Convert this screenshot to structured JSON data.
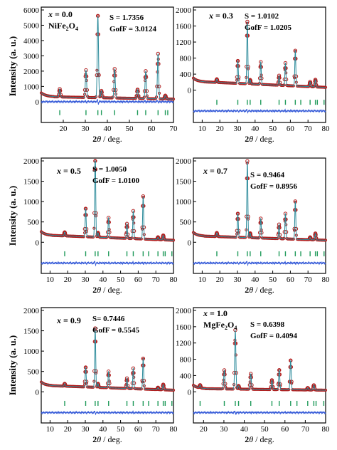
{
  "ylabel": "Intensity (a. u.)",
  "xlabel_prefix": "2",
  "xlabel_theta": "θ",
  "xlabel_suffix": " / deg.",
  "colors": {
    "observed": "#b01c1c",
    "calculated": "#2a8a9a",
    "tick": "#1f9a5a",
    "difference": "#3b5fd9",
    "axis": "#000000"
  },
  "chart_data": [
    {
      "type": "line",
      "panel": "x = 0.0",
      "composition": "x = 0.0",
      "formula": "NiFe2O4",
      "S": "S = 1.7356",
      "GofF": "GofF = 3.0124",
      "xlim": [
        10,
        70
      ],
      "ylim": [
        0,
        6000
      ],
      "xticks": [
        20,
        30,
        40,
        50,
        60,
        70
      ],
      "yticks": [
        0,
        1000,
        2000,
        3000,
        4000,
        5000,
        6000
      ],
      "background": [
        {
          "x": 12,
          "y": 330
        },
        {
          "x": 70,
          "y": 170
        }
      ],
      "peaks": [
        {
          "x": 18.4,
          "y": 520
        },
        {
          "x": 30.3,
          "y": 1780
        },
        {
          "x": 35.7,
          "y": 5350
        },
        {
          "x": 37.3,
          "y": 450
        },
        {
          "x": 43.3,
          "y": 1900
        },
        {
          "x": 53.7,
          "y": 580
        },
        {
          "x": 57.4,
          "y": 1800
        },
        {
          "x": 63.0,
          "y": 2950
        },
        {
          "x": 66.3,
          "y": 220
        }
      ],
      "bragg_positions": [
        18.4,
        30.3,
        35.7,
        37.3,
        43.3,
        53.7,
        57.4,
        63.0,
        66.3,
        67.4
      ]
    },
    {
      "type": "line",
      "panel": "x = 0.3",
      "composition": "x = 0.3",
      "formula": "",
      "S": "S = 1.0102",
      "GofF": "GofF = 1.0205",
      "xlim": [
        5,
        80
      ],
      "ylim": [
        0,
        2000
      ],
      "xticks": [
        10,
        20,
        30,
        40,
        50,
        60,
        70,
        80
      ],
      "yticks": [
        0,
        400,
        800,
        1200,
        1600,
        2000
      ],
      "background": [
        {
          "x": 5,
          "y": 220
        },
        {
          "x": 80,
          "y": 70
        }
      ],
      "peaks": [
        {
          "x": 18.3,
          "y": 80
        },
        {
          "x": 30.2,
          "y": 560
        },
        {
          "x": 35.6,
          "y": 1550
        },
        {
          "x": 37.2,
          "y": 100
        },
        {
          "x": 43.2,
          "y": 560
        },
        {
          "x": 53.6,
          "y": 240
        },
        {
          "x": 57.2,
          "y": 560
        },
        {
          "x": 62.8,
          "y": 880
        },
        {
          "x": 71.2,
          "y": 120
        },
        {
          "x": 74.2,
          "y": 180
        }
      ],
      "bragg_positions": [
        18.3,
        30.2,
        35.6,
        37.2,
        43.2,
        53.6,
        57.2,
        62.8,
        65.9,
        71.2,
        74.2,
        75.3,
        79.1
      ]
    },
    {
      "type": "line",
      "panel": "x = 0.5",
      "composition": "x = 0.5",
      "formula": "",
      "S": "S = 1.0050",
      "GofF": "GofF = 1.0100",
      "xlim": [
        5,
        80
      ],
      "ylim": [
        0,
        2000
      ],
      "xticks": [
        10,
        20,
        30,
        40,
        50,
        60,
        70,
        80
      ],
      "yticks": [
        0,
        500,
        1000,
        1500,
        2000
      ],
      "background": [
        {
          "x": 5,
          "y": 180
        },
        {
          "x": 80,
          "y": 50
        }
      ],
      "peaks": [
        {
          "x": 18.3,
          "y": 90
        },
        {
          "x": 30.2,
          "y": 690
        },
        {
          "x": 35.6,
          "y": 2150
        },
        {
          "x": 37.2,
          "y": 110
        },
        {
          "x": 43.2,
          "y": 490
        },
        {
          "x": 53.6,
          "y": 360
        },
        {
          "x": 57.2,
          "y": 680
        },
        {
          "x": 62.8,
          "y": 1050
        },
        {
          "x": 71.2,
          "y": 60
        },
        {
          "x": 74.2,
          "y": 110
        }
      ],
      "bragg_positions": [
        18.3,
        30.2,
        35.6,
        37.2,
        43.2,
        53.6,
        57.2,
        62.8,
        65.9,
        71.2,
        74.2,
        75.3,
        79.1
      ]
    },
    {
      "type": "line",
      "panel": "x = 0.7",
      "composition": "x = 0.7",
      "formula": "",
      "S": "S = 0.9464",
      "GofF": "GofF = 0.8956",
      "xlim": [
        5,
        80
      ],
      "ylim": [
        0,
        2000
      ],
      "xticks": [
        10,
        20,
        30,
        40,
        50,
        60,
        70,
        80
      ],
      "yticks": [
        0,
        500,
        1000,
        1500,
        2000
      ],
      "background": [
        {
          "x": 5,
          "y": 160
        },
        {
          "x": 80,
          "y": 50
        }
      ],
      "peaks": [
        {
          "x": 18.3,
          "y": 90
        },
        {
          "x": 30.2,
          "y": 580
        },
        {
          "x": 35.6,
          "y": 1880
        },
        {
          "x": 37.2,
          "y": 110
        },
        {
          "x": 43.2,
          "y": 480
        },
        {
          "x": 53.6,
          "y": 350
        },
        {
          "x": 57.2,
          "y": 620
        },
        {
          "x": 62.8,
          "y": 930
        },
        {
          "x": 71.2,
          "y": 60
        },
        {
          "x": 74.2,
          "y": 160
        }
      ],
      "bragg_positions": [
        18.3,
        30.2,
        35.6,
        37.2,
        43.2,
        53.6,
        57.2,
        62.8,
        65.9,
        71.2,
        74.2,
        75.3,
        79.1
      ]
    },
    {
      "type": "line",
      "panel": "x = 0.9",
      "composition": "x = 0.9",
      "formula": "",
      "S": "S= 0.7446",
      "GofF": "GofF = 0.5545",
      "xlim": [
        5,
        80
      ],
      "ylim": [
        0,
        2000
      ],
      "xticks": [
        10,
        20,
        30,
        40,
        50,
        60,
        70,
        80
      ],
      "yticks": [
        0,
        500,
        1000,
        1500,
        2000
      ],
      "background": [
        {
          "x": 5,
          "y": 160
        },
        {
          "x": 80,
          "y": 40
        }
      ],
      "peaks": [
        {
          "x": 18.3,
          "y": 60
        },
        {
          "x": 30.2,
          "y": 480
        },
        {
          "x": 35.6,
          "y": 1450
        },
        {
          "x": 37.2,
          "y": 90
        },
        {
          "x": 43.2,
          "y": 400
        },
        {
          "x": 53.6,
          "y": 250
        },
        {
          "x": 57.2,
          "y": 500
        },
        {
          "x": 62.8,
          "y": 750
        },
        {
          "x": 71.2,
          "y": 50
        },
        {
          "x": 74.2,
          "y": 130
        }
      ],
      "bragg_positions": [
        18.3,
        30.2,
        35.6,
        37.2,
        43.2,
        53.6,
        57.2,
        62.8,
        65.9,
        71.2,
        74.2,
        75.3,
        79.1
      ]
    },
    {
      "type": "line",
      "panel": "x = 1.0",
      "composition": "x = 1.0",
      "formula": "MgFe2O4",
      "S": "S = 0.6398",
      "GofF": "GofF = 0.4094",
      "xlim": [
        15,
        80
      ],
      "ylim": [
        0,
        2000
      ],
      "xticks": [
        20,
        30,
        40,
        50,
        60,
        70,
        80
      ],
      "yticks": [
        0,
        400,
        800,
        1200,
        1600,
        2000
      ],
      "background": [
        {
          "x": 15,
          "y": 80
        },
        {
          "x": 80,
          "y": 40
        }
      ],
      "peaks": [
        {
          "x": 18.3,
          "y": 70
        },
        {
          "x": 30.2,
          "y": 460
        },
        {
          "x": 35.6,
          "y": 1450
        },
        {
          "x": 37.2,
          "y": 80
        },
        {
          "x": 43.2,
          "y": 380
        },
        {
          "x": 53.6,
          "y": 230
        },
        {
          "x": 57.2,
          "y": 480
        },
        {
          "x": 62.8,
          "y": 720
        },
        {
          "x": 71.2,
          "y": 50
        },
        {
          "x": 74.2,
          "y": 120
        }
      ],
      "bragg_positions": [
        18.3,
        30.2,
        35.6,
        37.2,
        43.2,
        53.6,
        57.2,
        62.8,
        65.9,
        71.2,
        74.2,
        75.3,
        79.1
      ]
    }
  ]
}
